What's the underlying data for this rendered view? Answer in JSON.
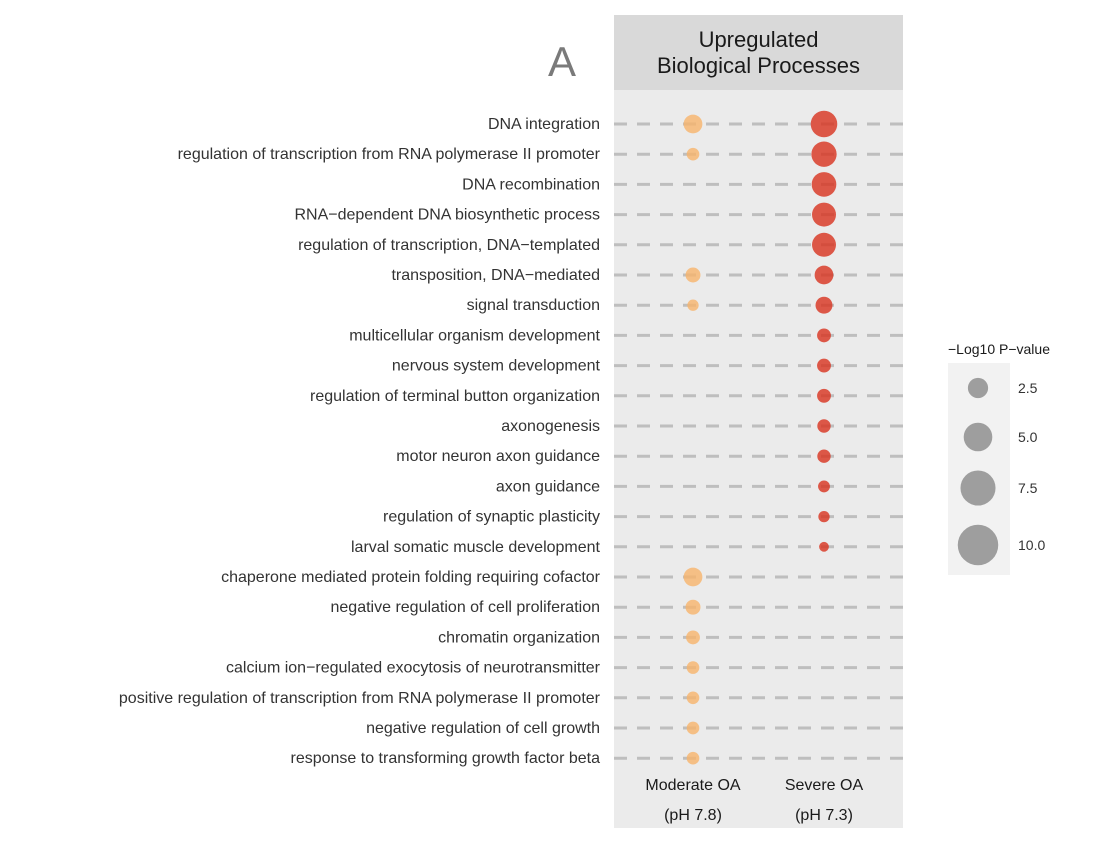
{
  "panel_label": "A",
  "strip": {
    "line1": "Upregulated",
    "line2": "Biological Processes"
  },
  "chart_data": {
    "type": "scatter",
    "title": "Upregulated Biological Processes",
    "categories": [
      "DNA integration",
      "regulation of transcription from RNA polymerase II promoter",
      "DNA recombination",
      "RNA−dependent DNA biosynthetic process",
      "regulation of transcription, DNA−templated",
      "transposition, DNA−mediated",
      "signal transduction",
      "multicellular organism development",
      "nervous system development",
      "regulation of terminal button organization",
      "axonogenesis",
      "motor neuron axon guidance",
      "axon guidance",
      "regulation of synaptic plasticity",
      "larval somatic muscle development",
      "chaperone mediated protein folding requiring cofactor",
      "negative regulation of cell proliferation",
      "chromatin organization",
      "calcium ion−regulated exocytosis of neurotransmitter",
      "positive regulation of transcription from RNA polymerase II promoter",
      "negative regulation of cell growth",
      "response to transforming growth factor beta"
    ],
    "x_categories": [
      {
        "line1": "Moderate OA",
        "line2": "(pH 7.8)"
      },
      {
        "line1": "Severe OA",
        "line2": "(pH 7.3)"
      }
    ],
    "series": [
      {
        "name": "Moderate OA",
        "color": "#f7b46b",
        "values": [
          5.5,
          2.5,
          null,
          null,
          null,
          3.5,
          2.0,
          null,
          null,
          null,
          null,
          null,
          null,
          null,
          null,
          5.5,
          3.5,
          3.0,
          2.5,
          2.5,
          2.5,
          2.5
        ]
      },
      {
        "name": "Severe OA",
        "color": "#d8321e",
        "values": [
          11.0,
          10.0,
          9.5,
          9.0,
          9.0,
          5.5,
          4.5,
          3.0,
          3.0,
          3.0,
          2.8,
          2.8,
          2.2,
          2.0,
          1.5,
          null,
          null,
          null,
          null,
          null,
          null,
          null
        ]
      }
    ],
    "size_legend": {
      "title": "−Log10 P−value",
      "values": [
        2.5,
        5.0,
        7.5,
        10.0
      ],
      "labels": [
        "2.5",
        "5.0",
        "7.5",
        "10.0"
      ],
      "color": "#999999"
    },
    "grid": true,
    "legend_position": "right",
    "background_color": "#ebebeb",
    "gridline_color": "#bebebe"
  }
}
